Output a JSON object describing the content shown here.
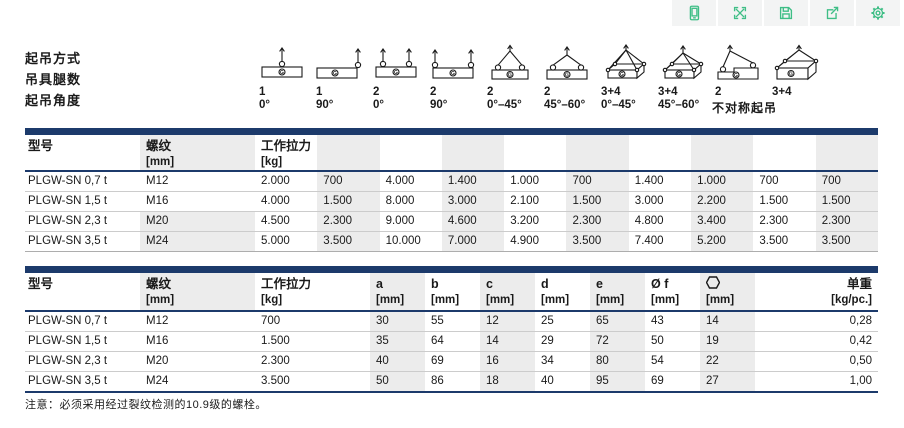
{
  "toolbar": {
    "icons": [
      "device-icon",
      "expand-icon",
      "save-icon",
      "share-icon",
      "gear-icon"
    ],
    "accent_color": "#3fbe86"
  },
  "colors": {
    "navy": "#1c3a6b",
    "column_shade": "#ececec",
    "toolbar_green": "#3fbe86"
  },
  "lifting": {
    "row_labels": [
      "起吊方式",
      "吊具腿数",
      "起吊角度"
    ],
    "asym_label": "不对称起吊",
    "columns": [
      {
        "type": "flat-1-0",
        "legs": "1",
        "angle": "0°"
      },
      {
        "type": "flat-1-90",
        "legs": "1",
        "angle": "90°"
      },
      {
        "type": "flat-2-0",
        "legs": "2",
        "angle": "0°"
      },
      {
        "type": "flat-2-90",
        "legs": "2",
        "angle": "90°"
      },
      {
        "type": "sling-2-narrow",
        "legs": "2",
        "angle": "0°–45°"
      },
      {
        "type": "sling-2-wide",
        "legs": "2",
        "angle": "45°–60°"
      },
      {
        "type": "box-34-narrow",
        "legs": "3+4",
        "angle": "0°–45°"
      },
      {
        "type": "box-34-wide",
        "legs": "3+4",
        "angle": "45°–60°"
      },
      {
        "type": "asym-2",
        "legs": "2",
        "angle": ""
      },
      {
        "type": "asym-34",
        "legs": "3+4",
        "angle": ""
      }
    ]
  },
  "table1": {
    "headers": {
      "model": "型号",
      "thread": "螺纹",
      "thread_unit": "[mm]",
      "load": "工作拉力",
      "load_unit": "[kg]"
    },
    "rows": [
      {
        "model": "PLGW-SN 0,7 t",
        "thread": "M12",
        "values": [
          "2.000",
          "700",
          "4.000",
          "1.400",
          "1.000",
          "700",
          "1.400",
          "1.000",
          "700",
          "700"
        ]
      },
      {
        "model": "PLGW-SN 1,5 t",
        "thread": "M16",
        "values": [
          "4.000",
          "1.500",
          "8.000",
          "3.000",
          "2.100",
          "1.500",
          "3.000",
          "2.200",
          "1.500",
          "1.500"
        ]
      },
      {
        "model": "PLGW-SN 2,3 t",
        "thread": "M20",
        "values": [
          "4.500",
          "2.300",
          "9.000",
          "4.600",
          "3.200",
          "2.300",
          "4.800",
          "3.400",
          "2.300",
          "2.300"
        ]
      },
      {
        "model": "PLGW-SN 3,5 t",
        "thread": "M24",
        "values": [
          "5.000",
          "3.500",
          "10.000",
          "7.000",
          "4.900",
          "3.500",
          "7.400",
          "5.200",
          "3.500",
          "3.500"
        ]
      }
    ]
  },
  "table2": {
    "headers": [
      {
        "label": "型号",
        "unit": ""
      },
      {
        "label": "螺纹",
        "unit": "[mm]"
      },
      {
        "label": "工作拉力",
        "unit": "[kg]"
      },
      {
        "label": "a",
        "unit": "[mm]"
      },
      {
        "label": "b",
        "unit": "[mm]"
      },
      {
        "label": "c",
        "unit": "[mm]"
      },
      {
        "label": "d",
        "unit": "[mm]"
      },
      {
        "label": "e",
        "unit": "[mm]"
      },
      {
        "label": "Ø f",
        "unit": "[mm]"
      },
      {
        "label": "",
        "unit": "[mm]",
        "symbol": "hexagon"
      },
      {
        "label": "单重",
        "unit": "[kg/pc.]"
      }
    ],
    "rows": [
      {
        "model": "PLGW-SN 0,7 t",
        "thread": "M12",
        "load": "700",
        "dims": [
          "30",
          "55",
          "12",
          "25",
          "65",
          "43",
          "14"
        ],
        "weight": "0,28"
      },
      {
        "model": "PLGW-SN 1,5 t",
        "thread": "M16",
        "load": "1.500",
        "dims": [
          "35",
          "64",
          "14",
          "29",
          "72",
          "50",
          "19"
        ],
        "weight": "0,42"
      },
      {
        "model": "PLGW-SN 2,3 t",
        "thread": "M20",
        "load": "2.300",
        "dims": [
          "40",
          "69",
          "16",
          "34",
          "80",
          "54",
          "22"
        ],
        "weight": "0,50"
      },
      {
        "model": "PLGW-SN 3,5 t",
        "thread": "M24",
        "load": "3.500",
        "dims": [
          "50",
          "86",
          "18",
          "40",
          "95",
          "69",
          "27"
        ],
        "weight": "1,00"
      }
    ]
  },
  "footnote": "注意：必须采用经过裂纹检测的10.9级的螺栓。"
}
